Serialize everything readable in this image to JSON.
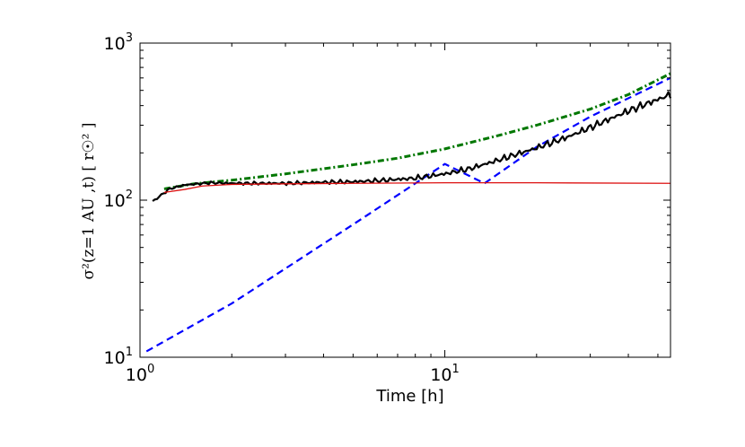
{
  "chart_data": {
    "type": "line",
    "xlabel": "Time [h]",
    "ylabel": "σ²(z=1 AU ,t) [  r☉² ]",
    "x_scale": "log",
    "y_scale": "log",
    "xlim": [
      1,
      55
    ],
    "ylim": [
      10,
      1000
    ],
    "x_ticks": [
      {
        "value": 1,
        "base": "10",
        "exp": "0"
      },
      {
        "value": 10,
        "base": "10",
        "exp": "1"
      }
    ],
    "y_ticks": [
      {
        "value": 10,
        "base": "10",
        "exp": "1"
      },
      {
        "value": 100,
        "base": "10",
        "exp": "2"
      },
      {
        "value": 1000,
        "base": "10",
        "exp": "3"
      }
    ],
    "grid": false,
    "series": [
      {
        "color": "#0000ff",
        "style": "dashed",
        "width": 2.2,
        "points": [
          [
            1.05,
            10.9
          ],
          [
            2,
            22
          ],
          [
            5,
            70
          ],
          [
            10,
            170
          ],
          [
            13.5,
            128
          ],
          [
            20,
            218
          ],
          [
            30,
            340
          ],
          [
            55,
            600
          ]
        ]
      },
      {
        "color": "#007700",
        "style": "dashdot",
        "width": 3,
        "points": [
          [
            1.2,
            118
          ],
          [
            1.5,
            127
          ],
          [
            2,
            134
          ],
          [
            3,
            147
          ],
          [
            5,
            168
          ],
          [
            7,
            185
          ],
          [
            10,
            212
          ],
          [
            15,
            258
          ],
          [
            20,
            300
          ],
          [
            30,
            380
          ],
          [
            40,
            470
          ],
          [
            55,
            640
          ]
        ]
      },
      {
        "color": "#000000",
        "style": "solid",
        "width": 2.2,
        "noisy": true,
        "points": [
          [
            1.1,
            98
          ],
          [
            1.25,
            118
          ],
          [
            1.4,
            125
          ],
          [
            1.7,
            129
          ],
          [
            2,
            128
          ],
          [
            3,
            128
          ],
          [
            4,
            130
          ],
          [
            5,
            131
          ],
          [
            6,
            133
          ],
          [
            8,
            138
          ],
          [
            10,
            147
          ],
          [
            12,
            158
          ],
          [
            15,
            180
          ],
          [
            20,
            215
          ],
          [
            25,
            250
          ],
          [
            30,
            290
          ],
          [
            40,
            370
          ],
          [
            55,
            470
          ]
        ]
      },
      {
        "color": "#dd1111",
        "style": "solid",
        "width": 1.3,
        "points": [
          [
            1.2,
            112
          ],
          [
            1.4,
            117
          ],
          [
            1.6,
            123
          ],
          [
            2,
            126
          ],
          [
            3,
            127
          ],
          [
            5,
            128
          ],
          [
            10,
            129
          ],
          [
            20,
            129
          ],
          [
            55,
            128
          ]
        ]
      }
    ]
  }
}
